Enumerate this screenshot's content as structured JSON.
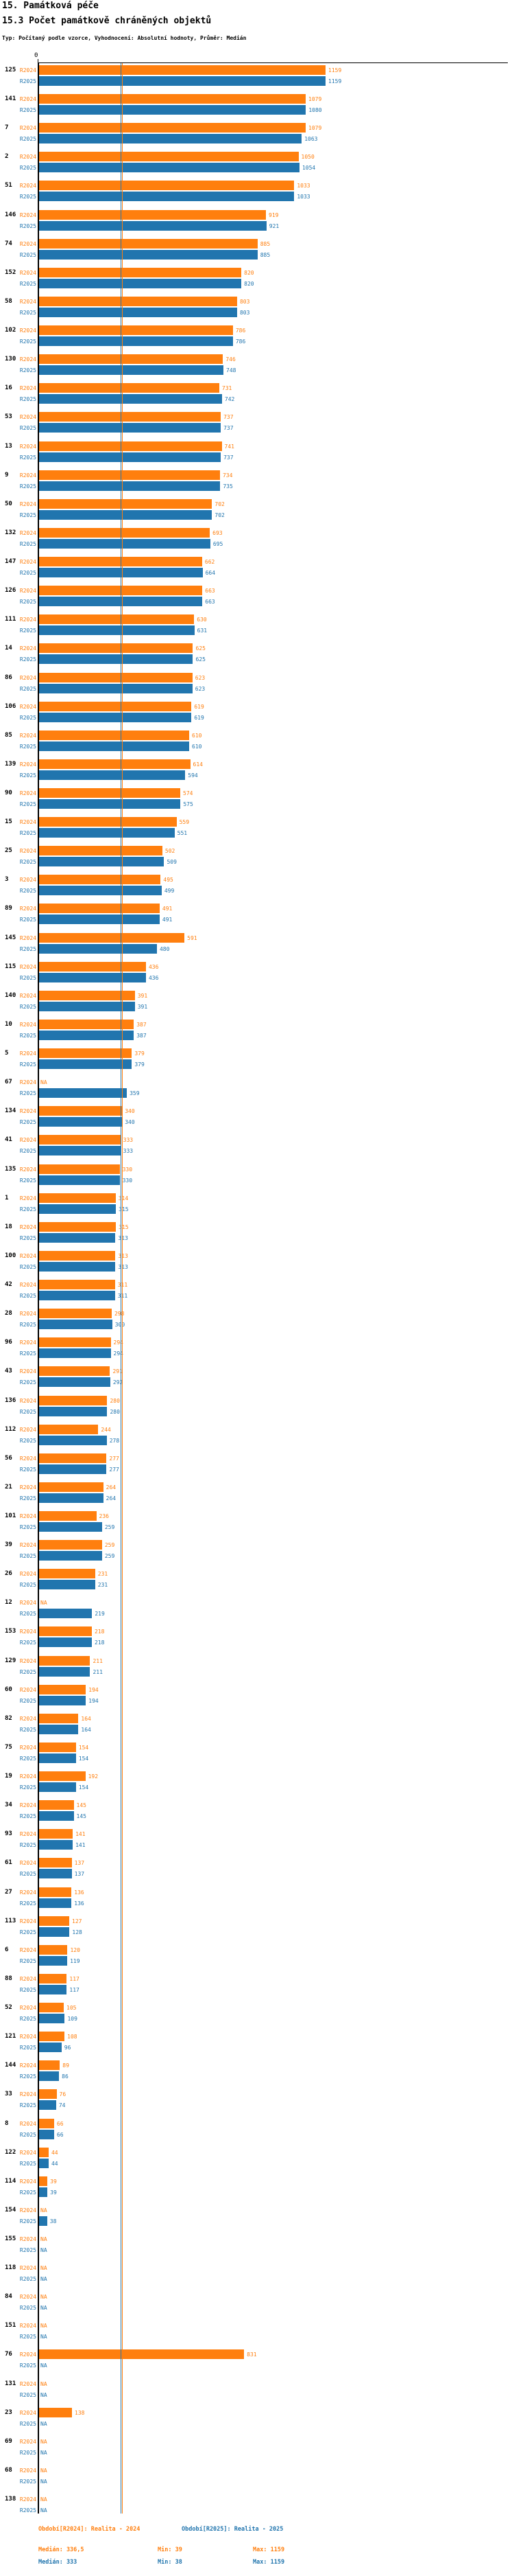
{
  "header": {
    "title": "15. Památková péče",
    "subtitle": "15.3 Počet památkově chráněných objektů",
    "meta": "Typ: Počítaný podle vzorce, Vyhodnocení: Absolutní hodnoty, Průměr: Medián"
  },
  "colors": {
    "r2024": "#ff7f0e",
    "r2025": "#2175ae",
    "axis": "#000000"
  },
  "na_label": "NA",
  "footer": {
    "r2024": {
      "period": "Období[R2024]: Realita - 2024",
      "median": "Medián: 336,5",
      "min": "Min: 39",
      "max": "Max: 1159"
    },
    "r2025": {
      "period": "Období[R2025]: Realita - 2025",
      "median": "Medián: 333",
      "min": "Min: 38",
      "max": "Max: 1159"
    }
  },
  "chart_data": {
    "type": "bar",
    "orientation": "horizontal",
    "title": "15.3 Počet památkově chráněných objektů",
    "x_tick_zero": "0",
    "x_max": 1159,
    "series_names": [
      "R2024",
      "R2025"
    ],
    "median_lines": {
      "R2024": 336.5,
      "R2025": 333
    },
    "stats": {
      "R2024": {
        "median": 336.5,
        "min": 39,
        "max": 1159
      },
      "R2025": {
        "median": 333,
        "min": 38,
        "max": 1159
      }
    },
    "legend_position": "bottom",
    "rows": [
      {
        "id": "125",
        "R2024": 1159,
        "R2025": 1159
      },
      {
        "id": "141",
        "R2024": 1079,
        "R2025": 1080
      },
      {
        "id": "7",
        "R2024": 1079,
        "R2025": 1063
      },
      {
        "id": "2",
        "R2024": 1050,
        "R2025": 1054
      },
      {
        "id": "51",
        "R2024": 1033,
        "R2025": 1033
      },
      {
        "id": "146",
        "R2024": 919,
        "R2025": 921
      },
      {
        "id": "74",
        "R2024": 885,
        "R2025": 885
      },
      {
        "id": "152",
        "R2024": 820,
        "R2025": 820
      },
      {
        "id": "58",
        "R2024": 803,
        "R2025": 803
      },
      {
        "id": "102",
        "R2024": 786,
        "R2025": 786
      },
      {
        "id": "130",
        "R2024": 746,
        "R2025": 748
      },
      {
        "id": "16",
        "R2024": 731,
        "R2025": 742
      },
      {
        "id": "53",
        "R2024": 737,
        "R2025": 737
      },
      {
        "id": "13",
        "R2024": 741,
        "R2025": 737
      },
      {
        "id": "9",
        "R2024": 734,
        "R2025": 735
      },
      {
        "id": "50",
        "R2024": 702,
        "R2025": 702
      },
      {
        "id": "132",
        "R2024": 693,
        "R2025": 695
      },
      {
        "id": "147",
        "R2024": 662,
        "R2025": 664
      },
      {
        "id": "126",
        "R2024": 663,
        "R2025": 663
      },
      {
        "id": "111",
        "R2024": 630,
        "R2025": 631
      },
      {
        "id": "14",
        "R2024": 625,
        "R2025": 625
      },
      {
        "id": "86",
        "R2024": 623,
        "R2025": 623
      },
      {
        "id": "106",
        "R2024": 619,
        "R2025": 619
      },
      {
        "id": "85",
        "R2024": 610,
        "R2025": 610
      },
      {
        "id": "139",
        "R2024": 614,
        "R2025": 594
      },
      {
        "id": "90",
        "R2024": 574,
        "R2025": 575
      },
      {
        "id": "15",
        "R2024": 559,
        "R2025": 551
      },
      {
        "id": "25",
        "R2024": 502,
        "R2025": 509
      },
      {
        "id": "3",
        "R2024": 495,
        "R2025": 499
      },
      {
        "id": "89",
        "R2024": 491,
        "R2025": 491
      },
      {
        "id": "145",
        "R2024": 591,
        "R2025": 480
      },
      {
        "id": "115",
        "R2024": 436,
        "R2025": 436
      },
      {
        "id": "140",
        "R2024": 391,
        "R2025": 391
      },
      {
        "id": "10",
        "R2024": 387,
        "R2025": 387
      },
      {
        "id": "5",
        "R2024": 379,
        "R2025": 379
      },
      {
        "id": "67",
        "R2024": null,
        "R2025": 359
      },
      {
        "id": "134",
        "R2024": 340,
        "R2025": 340
      },
      {
        "id": "41",
        "R2024": 333,
        "R2025": 333
      },
      {
        "id": "135",
        "R2024": 330,
        "R2025": 330
      },
      {
        "id": "1",
        "R2024": 314,
        "R2025": 315
      },
      {
        "id": "18",
        "R2024": 315,
        "R2025": 313
      },
      {
        "id": "100",
        "R2024": 313,
        "R2025": 313
      },
      {
        "id": "42",
        "R2024": 311,
        "R2025": 311
      },
      {
        "id": "28",
        "R2024": 298,
        "R2025": 300
      },
      {
        "id": "96",
        "R2024": 294,
        "R2025": 294
      },
      {
        "id": "43",
        "R2024": 291,
        "R2025": 292
      },
      {
        "id": "136",
        "R2024": 280,
        "R2025": 280
      },
      {
        "id": "112",
        "R2024": 244,
        "R2025": 278
      },
      {
        "id": "56",
        "R2024": 277,
        "R2025": 277
      },
      {
        "id": "21",
        "R2024": 264,
        "R2025": 264
      },
      {
        "id": "101",
        "R2024": 236,
        "R2025": 259
      },
      {
        "id": "39",
        "R2024": 259,
        "R2025": 259
      },
      {
        "id": "26",
        "R2024": 231,
        "R2025": 231
      },
      {
        "id": "12",
        "R2024": null,
        "R2025": 219
      },
      {
        "id": "153",
        "R2024": 218,
        "R2025": 218
      },
      {
        "id": "129",
        "R2024": 211,
        "R2025": 211
      },
      {
        "id": "60",
        "R2024": 194,
        "R2025": 194
      },
      {
        "id": "82",
        "R2024": 164,
        "R2025": 164
      },
      {
        "id": "75",
        "R2024": 154,
        "R2025": 154
      },
      {
        "id": "19",
        "R2024": 192,
        "R2025": 154
      },
      {
        "id": "34",
        "R2024": 145,
        "R2025": 145
      },
      {
        "id": "93",
        "R2024": 141,
        "R2025": 141
      },
      {
        "id": "61",
        "R2024": 137,
        "R2025": 137
      },
      {
        "id": "27",
        "R2024": 136,
        "R2025": 136
      },
      {
        "id": "113",
        "R2024": 127,
        "R2025": 128
      },
      {
        "id": "6",
        "R2024": 120,
        "R2025": 119
      },
      {
        "id": "88",
        "R2024": 117,
        "R2025": 117
      },
      {
        "id": "52",
        "R2024": 105,
        "R2025": 109
      },
      {
        "id": "121",
        "R2024": 108,
        "R2025": 96
      },
      {
        "id": "144",
        "R2024": 89,
        "R2025": 86
      },
      {
        "id": "33",
        "R2024": 76,
        "R2025": 74
      },
      {
        "id": "8",
        "R2024": 66,
        "R2025": 66
      },
      {
        "id": "122",
        "R2024": 44,
        "R2025": 44
      },
      {
        "id": "114",
        "R2024": 39,
        "R2025": 39
      },
      {
        "id": "154",
        "R2024": null,
        "R2025": 38
      },
      {
        "id": "155",
        "R2024": null,
        "R2025": null
      },
      {
        "id": "118",
        "R2024": null,
        "R2025": null
      },
      {
        "id": "84",
        "R2024": null,
        "R2025": null
      },
      {
        "id": "151",
        "R2024": null,
        "R2025": null
      },
      {
        "id": "76",
        "R2024": 831,
        "R2025": null
      },
      {
        "id": "131",
        "R2024": null,
        "R2025": null
      },
      {
        "id": "23",
        "R2024": 138,
        "R2025": null
      },
      {
        "id": "69",
        "R2024": null,
        "R2025": null
      },
      {
        "id": "68",
        "R2024": null,
        "R2025": null
      },
      {
        "id": "138",
        "R2024": null,
        "R2025": null
      }
    ]
  }
}
